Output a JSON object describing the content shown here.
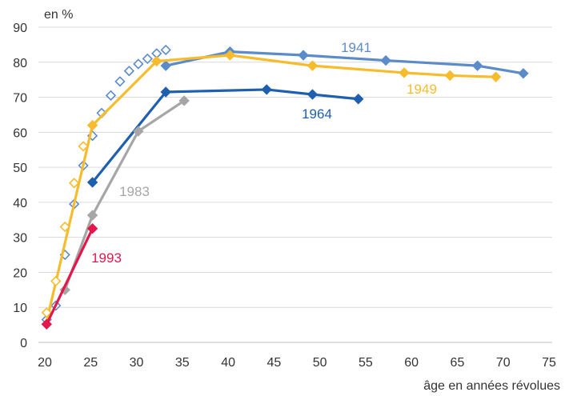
{
  "chart_data": {
    "type": "line",
    "title": "",
    "ylabel": "en %",
    "xlabel": "âge en années révolues",
    "xlim": [
      20,
      75
    ],
    "ylim": [
      0,
      90
    ],
    "xticks": [
      20,
      25,
      30,
      35,
      40,
      45,
      50,
      55,
      60,
      65,
      70,
      75
    ],
    "yticks": [
      0,
      10,
      20,
      30,
      40,
      50,
      60,
      70,
      80,
      90
    ],
    "grid": "horizontal",
    "legend": "inline labels",
    "series": [
      {
        "name": "1941",
        "color": "#5B8CC9",
        "line": [
          [
            33.2,
            79
          ],
          [
            40.2,
            83
          ],
          [
            48.2,
            82
          ],
          [
            57.2,
            80.5
          ],
          [
            67.2,
            79
          ],
          [
            72.2,
            76.8
          ]
        ],
        "points_filled": [
          [
            33.2,
            79
          ],
          [
            40.2,
            83
          ],
          [
            48.2,
            82
          ],
          [
            57.2,
            80.5
          ],
          [
            67.2,
            79
          ],
          [
            72.2,
            76.8
          ]
        ],
        "points_hollow": [
          [
            20.2,
            6.5
          ],
          [
            21.2,
            10.5
          ],
          [
            22.2,
            25
          ],
          [
            23.2,
            39.5
          ],
          [
            24.2,
            50.5
          ],
          [
            25.2,
            59
          ],
          [
            26.2,
            65.5
          ],
          [
            27.2,
            70.5
          ],
          [
            28.2,
            74.5
          ],
          [
            29.2,
            77.5
          ],
          [
            30.2,
            79.5
          ],
          [
            31.2,
            81
          ],
          [
            32.2,
            82.5
          ],
          [
            33.2,
            83.5
          ]
        ]
      },
      {
        "name": "1949",
        "color": "#F6BC2D",
        "line": [
          [
            20.2,
            6
          ],
          [
            25.2,
            62
          ],
          [
            32.2,
            80.3
          ],
          [
            40.2,
            82
          ],
          [
            49.2,
            79
          ],
          [
            59.2,
            77
          ],
          [
            64.2,
            76.2
          ],
          [
            69.2,
            75.8
          ]
        ],
        "points_filled": [
          [
            25.2,
            62
          ],
          [
            32.2,
            80.3
          ],
          [
            40.2,
            82
          ],
          [
            49.2,
            79
          ],
          [
            59.2,
            77
          ],
          [
            64.2,
            76.2
          ],
          [
            69.2,
            75.8
          ]
        ],
        "points_hollow": [
          [
            20.2,
            8.5
          ],
          [
            21.2,
            17.5
          ],
          [
            22.2,
            33
          ],
          [
            23.2,
            45.5
          ],
          [
            24.2,
            56
          ]
        ]
      },
      {
        "name": "1964",
        "color": "#1F5FAF",
        "line": [
          [
            25.2,
            45.7
          ],
          [
            33.2,
            71.5
          ],
          [
            44.2,
            72.2
          ],
          [
            49.2,
            70.8
          ],
          [
            54.2,
            69.5
          ]
        ],
        "points_filled": [
          [
            25.2,
            45.7
          ],
          [
            33.2,
            71.5
          ],
          [
            44.2,
            72.2
          ],
          [
            49.2,
            70.8
          ],
          [
            54.2,
            69.5
          ]
        ],
        "points_hollow": []
      },
      {
        "name": "1983",
        "color": "#A6A6A6",
        "line": [
          [
            22.2,
            15
          ],
          [
            25.2,
            36.3
          ],
          [
            30.2,
            60.3
          ],
          [
            35.2,
            69
          ]
        ],
        "points_filled": [
          [
            22.2,
            15
          ],
          [
            25.2,
            36.3
          ],
          [
            30.2,
            60.3
          ],
          [
            35.2,
            69
          ]
        ],
        "points_hollow": []
      },
      {
        "name": "1993",
        "color": "#E3174B",
        "line": [
          [
            20.2,
            5.2
          ],
          [
            25.2,
            32.5
          ]
        ],
        "points_filled": [
          [
            20.2,
            5.2
          ],
          [
            25.2,
            32.5
          ]
        ],
        "points_hollow": []
      }
    ]
  }
}
